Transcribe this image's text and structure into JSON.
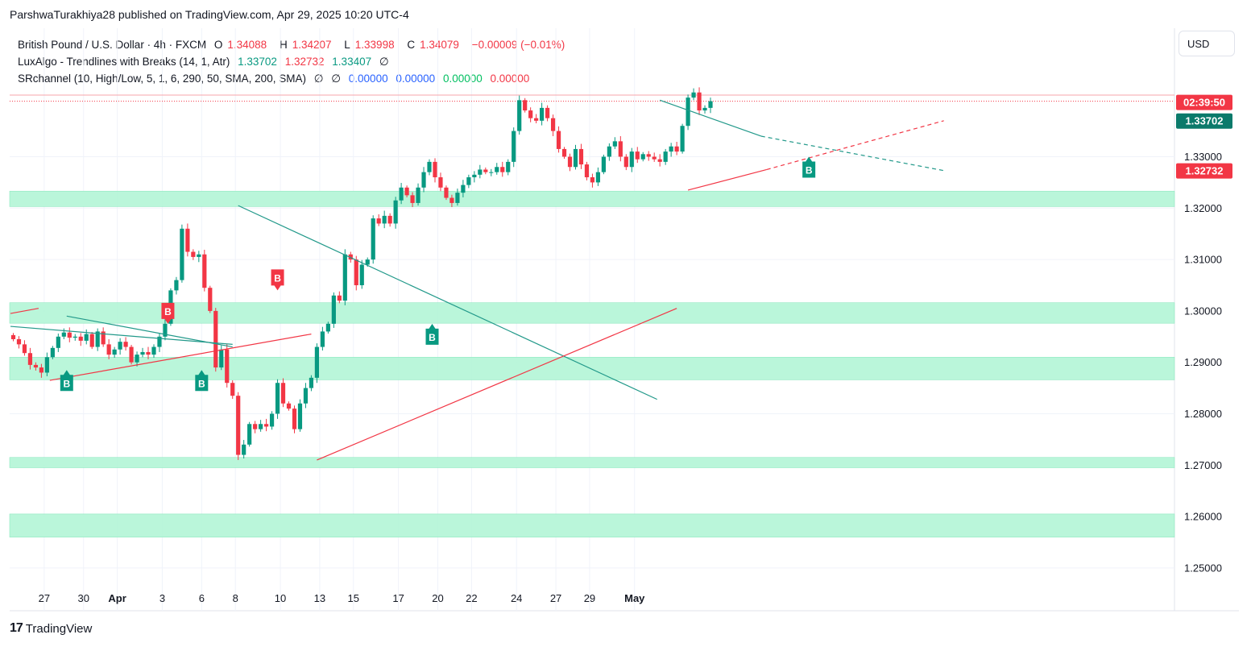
{
  "header": "ParshwaTurakhiya28 published on TradingView.com, Apr 29, 2025 10:20 UTC-4",
  "legend": {
    "line1": {
      "symbol": "British Pound / U.S. Dollar · 4h · FXCM",
      "o_label": "O",
      "o": "1.34088",
      "h_label": "H",
      "h": "1.34207",
      "l_label": "L",
      "l": "1.33998",
      "c_label": "C",
      "c": "1.34079",
      "change": "−0.00009 (−0.01%)"
    },
    "line2": {
      "name": "LuxAlgo - Trendlines with Breaks (14, 1, Atr)",
      "v1": "1.33702",
      "v2": "1.32732",
      "v3": "1.33407",
      "v4": "∅"
    },
    "line3": {
      "name": "SRchannel (10, High/Low, 5, 1, 6, 290, 50, SMA, 200, SMA)",
      "e1": "∅",
      "e2": "∅",
      "v1": "0.00000",
      "v2": "0.00000",
      "v3": "0.00000",
      "v4": "0.00000"
    }
  },
  "currency": "USD",
  "price_tags": {
    "countdown": "02:39:50",
    "upper_trend": "1.33702",
    "lower_trend": "1.32732"
  },
  "footer": {
    "logo": "17",
    "brand": "TradingView"
  },
  "colors": {
    "up": "#089981",
    "down": "#f23645",
    "zone": "#b2f5d6",
    "resistance_line": "#22998a",
    "support_line": "#f23645"
  },
  "chart_data": {
    "type": "candlestick",
    "timeframe": "4h",
    "y_ticks": [
      "1.33000",
      "1.32000",
      "1.31000",
      "1.30000",
      "1.29000",
      "1.28000",
      "1.27000",
      "1.26000",
      "1.25000"
    ],
    "ylim": [
      1.2455,
      1.3555
    ],
    "x_ticks": [
      {
        "label": "27",
        "bar": 6
      },
      {
        "label": "30",
        "bar": 13
      },
      {
        "label": "Apr",
        "bar": 19,
        "bold": true
      },
      {
        "label": "3",
        "bar": 27
      },
      {
        "label": "6",
        "bar": 34
      },
      {
        "label": "8",
        "bar": 40
      },
      {
        "label": "10",
        "bar": 48
      },
      {
        "label": "13",
        "bar": 55
      },
      {
        "label": "15",
        "bar": 61
      },
      {
        "label": "17",
        "bar": 69
      },
      {
        "label": "20",
        "bar": 76
      },
      {
        "label": "22",
        "bar": 82
      },
      {
        "label": "24",
        "bar": 90
      },
      {
        "label": "27",
        "bar": 97
      },
      {
        "label": "29",
        "bar": 103
      },
      {
        "label": "May",
        "bar": 111,
        "bold": true
      }
    ],
    "sr_zones": [
      [
        1.3233,
        1.3203
      ],
      [
        1.3016,
        1.2976
      ],
      [
        1.291,
        1.2866
      ],
      [
        1.2715,
        1.2695
      ],
      [
        1.2605,
        1.256
      ]
    ],
    "closes": [
      1.2945,
      1.2935,
      1.2918,
      1.2895,
      1.289,
      1.288,
      1.291,
      1.2928,
      1.295,
      1.2958,
      1.2948,
      1.295,
      1.2942,
      1.2955,
      1.293,
      1.296,
      1.2935,
      1.2915,
      1.2925,
      1.294,
      1.293,
      1.29,
      1.2915,
      1.292,
      1.2915,
      1.293,
      1.295,
      1.2975,
      1.304,
      1.306,
      1.316,
      1.3115,
      1.3105,
      1.311,
      1.3045,
      1.3,
      1.289,
      1.2925,
      1.286,
      1.2835,
      1.272,
      1.274,
      1.278,
      1.277,
      1.278,
      1.2775,
      1.28,
      1.286,
      1.282,
      1.281,
      1.277,
      1.282,
      1.285,
      1.287,
      1.293,
      1.296,
      1.2975,
      1.303,
      1.302,
      1.311,
      1.31,
      1.305,
      1.309,
      1.31,
      1.318,
      1.317,
      1.3185,
      1.317,
      1.3215,
      1.324,
      1.3225,
      1.321,
      1.324,
      1.327,
      1.329,
      1.326,
      1.324,
      1.322,
      1.321,
      1.323,
      1.3245,
      1.326,
      1.3265,
      1.3275,
      1.327,
      1.327,
      1.328,
      1.327,
      1.329,
      1.335,
      1.341,
      1.339,
      1.3375,
      1.337,
      1.3395,
      1.3375,
      1.335,
      1.3315,
      1.33,
      1.328,
      1.3315,
      1.3285,
      1.326,
      1.325,
      1.327,
      1.33,
      1.332,
      1.333,
      1.33,
      1.328,
      1.331,
      1.3295,
      1.3305,
      1.33,
      1.3295,
      1.329,
      1.331,
      1.332,
      1.331,
      1.336,
      1.3415,
      1.3425,
      1.339,
      1.3395,
      1.3408
    ],
    "trendlines": [
      {
        "type": "resistance",
        "from": [
          0,
          1.297
        ],
        "to": [
          39.5,
          1.2935
        ]
      },
      {
        "type": "resistance",
        "from": [
          10,
          1.299
        ],
        "to": [
          39.5,
          1.293
        ]
      },
      {
        "type": "support",
        "from": [
          0,
          1.2995
        ],
        "to": [
          5,
          1.3005
        ]
      },
      {
        "type": "support",
        "from": [
          7,
          1.2865
        ],
        "to": [
          53.5,
          1.2955
        ]
      },
      {
        "type": "resistance",
        "from": [
          40.5,
          1.3205
        ],
        "to": [
          115,
          1.2828
        ]
      },
      {
        "type": "support",
        "from": [
          54.5,
          1.271
        ],
        "to": [
          118.5,
          1.3005
        ]
      },
      {
        "type": "resistance",
        "from": [
          115.5,
          1.341
        ],
        "to": [
          133.5,
          1.334
        ]
      },
      {
        "type": "resistance_ext",
        "from": [
          133.5,
          1.334
        ],
        "to": [
          166,
          1.3273
        ]
      },
      {
        "type": "support",
        "from": [
          120.5,
          1.3235
        ],
        "to": [
          134.5,
          1.3275
        ]
      },
      {
        "type": "support_ext",
        "from": [
          134.5,
          1.3275
        ],
        "to": [
          166,
          1.337
        ]
      }
    ],
    "break_labels": [
      {
        "label": "B",
        "bar": 10,
        "price": 1.2885,
        "side": "below",
        "color": "up"
      },
      {
        "label": "B",
        "bar": 28,
        "price": 1.2975,
        "side": "above",
        "color": "down"
      },
      {
        "label": "B",
        "bar": 34,
        "price": 1.2885,
        "side": "below",
        "color": "up"
      },
      {
        "label": "B",
        "bar": 47.5,
        "price": 1.304,
        "side": "above",
        "color": "down"
      },
      {
        "label": "B",
        "bar": 75,
        "price": 1.2975,
        "side": "below",
        "color": "up"
      },
      {
        "label": "B",
        "bar": 142,
        "price": 1.33,
        "side": "below",
        "color": "up"
      }
    ],
    "last_price": 1.3408,
    "ref_line": 1.342
  }
}
